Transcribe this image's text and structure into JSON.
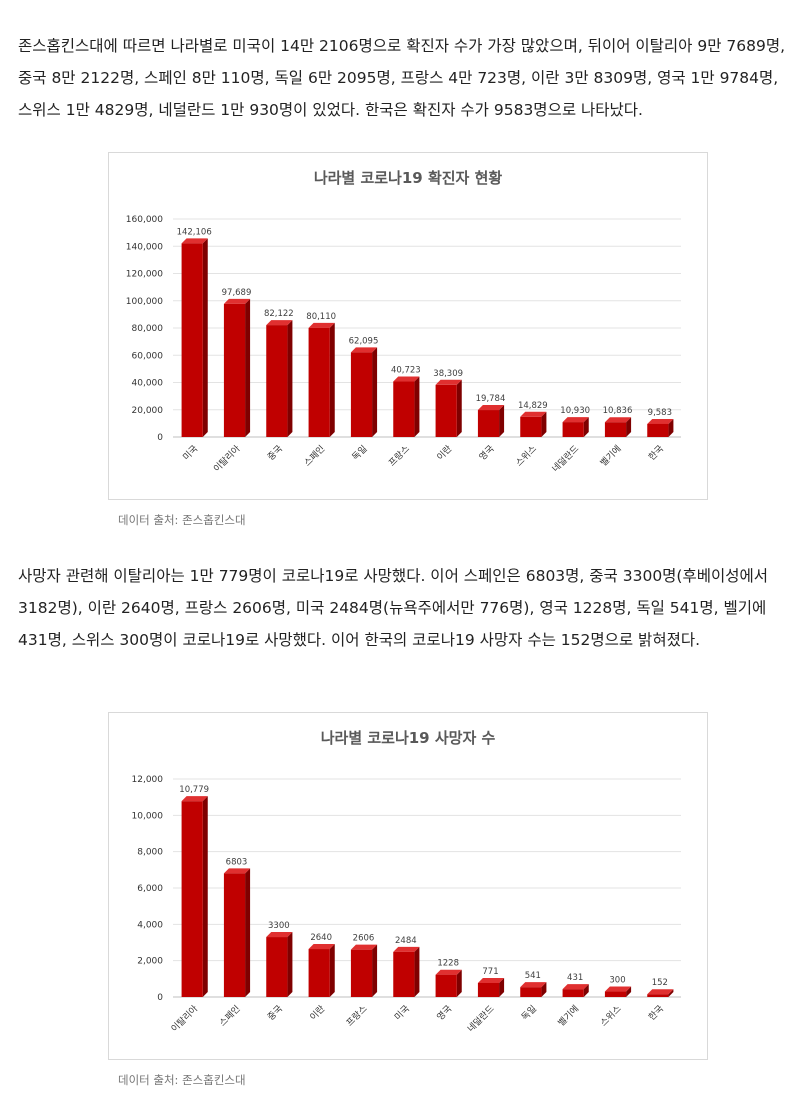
{
  "paragraphs": {
    "p1": "존스홉킨스대에 따르면 나라별로 미국이 14만 2106명으로 확진자 수가 가장 많았으며, 뒤이어 이탈리아 9만 7689명, 중국 8만 2122명, 스페인 8만 110명, 독일 6만 2095명, 프랑스 4만 723명, 이란 3만 8309명, 영국 1만 9784명, 스위스 1만 4829명, 네덜란드 1만 930명이 있었다. 한국은 확진자 수가 9583명으로 나타났다.",
    "p2": "사망자 관련해 이탈리아는 1만 779명이 코로나19로 사망했다. 이어 스페인은 6803명, 중국 3300명(후베이성에서 3182명), 이란 2640명, 프랑스 2606명, 미국 2484명(뉴욕주에서만 776명), 영국 1228명, 독일 541명, 벨기에 431명, 스위스 300명이 코로나19로 사망했다. 이어 한국의 코로나19 사망자 수는 152명으로 밝혀졌다."
  },
  "sources": {
    "s1": "데이터 출처: 존스홉킨스대",
    "s2": "데이터 출처: 존스홉킨스대"
  },
  "chart_data": [
    {
      "type": "bar",
      "title": "나라별 코로나19 확진자 현황",
      "xlabel": "",
      "ylabel": "",
      "categories": [
        "미국",
        "이탈리아",
        "중국",
        "스페인",
        "독일",
        "프랑스",
        "이란",
        "영국",
        "스위스",
        "네덜란드",
        "벨기에",
        "한국"
      ],
      "values": [
        142106,
        97689,
        82122,
        80110,
        62095,
        40723,
        38309,
        19784,
        14829,
        10930,
        10836,
        9583
      ],
      "value_labels": [
        "142,106",
        "97,689",
        "82,122",
        "80,110",
        "62,095",
        "40,723",
        "38,309",
        "19,784",
        "14,829",
        "10,930",
        "10,836",
        "9,583"
      ],
      "ylim": [
        0,
        160000
      ],
      "yticks": [
        "0",
        "20,000",
        "40,000",
        "60,000",
        "80,000",
        "100,000",
        "120,000",
        "140,000",
        "160,000"
      ],
      "grid": true,
      "legend": "none",
      "bar_color": "#c00000",
      "bar_top_color": "#e03030",
      "bar_side_color": "#7f0000"
    },
    {
      "type": "bar",
      "title": "나라별 코로나19 사망자 수",
      "xlabel": "",
      "ylabel": "",
      "categories": [
        "이탈리아",
        "스페인",
        "중국",
        "이란",
        "프랑스",
        "미국",
        "영국",
        "네덜란드",
        "독일",
        "벨기에",
        "스위스",
        "한국"
      ],
      "values": [
        10779,
        6803,
        3300,
        2640,
        2606,
        2484,
        1228,
        771,
        541,
        431,
        300,
        152
      ],
      "value_labels": [
        "10,779",
        "6803",
        "3300",
        "2640",
        "2606",
        "2484",
        "1228",
        "771",
        "541",
        "431",
        "300",
        "152"
      ],
      "ylim": [
        0,
        12000
      ],
      "yticks": [
        "0",
        "2,000",
        "4,000",
        "6,000",
        "8,000",
        "10,000",
        "12,000"
      ],
      "grid": true,
      "legend": "none",
      "bar_color": "#c00000",
      "bar_top_color": "#e03030",
      "bar_side_color": "#7f0000"
    }
  ]
}
